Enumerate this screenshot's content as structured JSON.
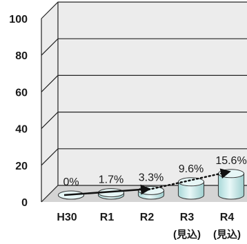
{
  "chart_data": {
    "type": "bar",
    "style": "3d-cylinder",
    "categories": [
      {
        "label": "H30",
        "sublabel": ""
      },
      {
        "label": "R1",
        "sublabel": ""
      },
      {
        "label": "R2",
        "sublabel": ""
      },
      {
        "label": "R3",
        "sublabel": "(見込)"
      },
      {
        "label": "R4",
        "sublabel": "(見込)"
      }
    ],
    "values": [
      0,
      1.7,
      3.3,
      9.6,
      15.6
    ],
    "data_labels": [
      "0%",
      "1.7%",
      "3.3%",
      "9.6%",
      "15.6%"
    ],
    "ylim": [
      0,
      100
    ],
    "yticks": [
      0,
      20,
      40,
      60,
      80,
      100
    ],
    "grid": true,
    "trend_arrows": [
      {
        "from": 0,
        "to": 2,
        "style": "solid"
      },
      {
        "from": 2,
        "to": 4,
        "style": "dotted"
      }
    ],
    "colors": {
      "cylinder_fill": "#cdebeb",
      "cylinder_top": "#e6f6f6",
      "cylinder_stroke": "#333333",
      "wall": "#ececec",
      "floor": "#d9d9d9",
      "grid": "#222222",
      "arrow": "#111111"
    }
  }
}
